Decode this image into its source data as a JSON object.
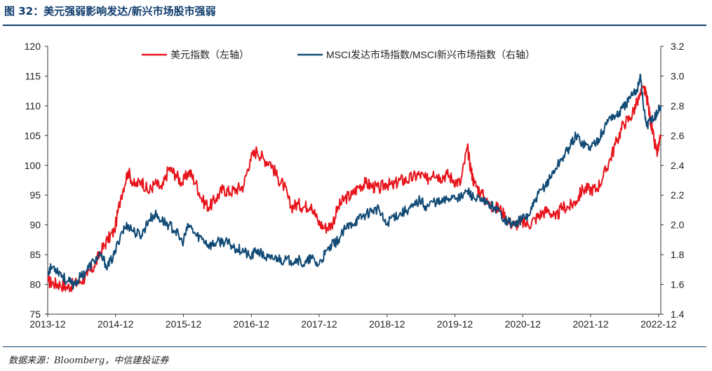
{
  "figure": {
    "title": "图 32：美元强弱影响发达/新兴市场股市强弱",
    "source": "数据来源：Bloomberg，中信建投证券"
  },
  "colors": {
    "red_series": "#e8141c",
    "blue_series": "#104a75",
    "rule": "#123e6b"
  },
  "chart_data": {
    "type": "line",
    "title": "图 32：美元强弱影响发达/新兴市场股市强弱",
    "x_tick_labels": [
      "2013-12",
      "2014-12",
      "2015-12",
      "2016-12",
      "2017-12",
      "2018-12",
      "2019-12",
      "2020-12",
      "2021-12",
      "2022-12"
    ],
    "x_range": [
      2013.917,
      2022.95
    ],
    "y_left": {
      "label": "美元指数（左轴）",
      "range": [
        75,
        120
      ],
      "ticks": [
        "75",
        "80",
        "85",
        "90",
        "95",
        "100",
        "105",
        "110",
        "115",
        "120"
      ]
    },
    "y_right": {
      "label": "MSCI发达市场指数/MSCI新兴市场指数（右轴）",
      "range": [
        1.4,
        3.2
      ],
      "ticks": [
        "1.4",
        "1.6",
        "1.8",
        "2.0",
        "2.2",
        "2.4",
        "2.6",
        "2.8",
        "3.0",
        "3.2"
      ]
    },
    "legend_position": "top-center",
    "series": [
      {
        "name": "美元指数（左轴）",
        "axis": "left",
        "color": "#e8141c",
        "x": [
          2013.92,
          2014.0,
          2014.1,
          2014.2,
          2014.3,
          2014.4,
          2014.5,
          2014.6,
          2014.7,
          2014.8,
          2014.9,
          2015.0,
          2015.1,
          2015.2,
          2015.3,
          2015.4,
          2015.5,
          2015.6,
          2015.7,
          2015.8,
          2015.9,
          2016.0,
          2016.1,
          2016.2,
          2016.3,
          2016.4,
          2016.5,
          2016.6,
          2016.7,
          2016.8,
          2016.9,
          2017.0,
          2017.1,
          2017.2,
          2017.3,
          2017.4,
          2017.5,
          2017.6,
          2017.7,
          2017.8,
          2017.9,
          2018.0,
          2018.1,
          2018.2,
          2018.3,
          2018.4,
          2018.5,
          2018.6,
          2018.7,
          2018.8,
          2018.9,
          2019.0,
          2019.1,
          2019.2,
          2019.3,
          2019.4,
          2019.5,
          2019.6,
          2019.7,
          2019.8,
          2019.9,
          2020.0,
          2020.1,
          2020.15,
          2020.2,
          2020.3,
          2020.4,
          2020.5,
          2020.6,
          2020.7,
          2020.8,
          2020.9,
          2021.0,
          2021.1,
          2021.2,
          2021.3,
          2021.4,
          2021.5,
          2021.6,
          2021.7,
          2021.8,
          2021.9,
          2022.0,
          2022.1,
          2022.2,
          2022.3,
          2022.4,
          2022.5,
          2022.6,
          2022.7,
          2022.75,
          2022.8,
          2022.85,
          2022.9,
          2022.95
        ],
        "values": [
          80.5,
          80.2,
          80.0,
          79.5,
          80.0,
          80.5,
          81.5,
          83.0,
          85.5,
          87.5,
          89.0,
          95.0,
          99.0,
          96.5,
          97.5,
          95.5,
          97.0,
          96.0,
          99.5,
          98.5,
          97.0,
          99.0,
          97.0,
          94.0,
          93.0,
          94.5,
          96.0,
          95.5,
          96.0,
          96.5,
          101.0,
          102.5,
          101.0,
          100.5,
          98.0,
          96.5,
          93.0,
          93.5,
          93.0,
          93.5,
          90.5,
          89.5,
          90.0,
          93.0,
          94.5,
          95.0,
          96.5,
          97.0,
          96.5,
          96.0,
          97.0,
          96.5,
          97.5,
          97.5,
          98.0,
          98.5,
          97.5,
          99.0,
          98.0,
          98.5,
          97.5,
          97.0,
          103.0,
          99.5,
          97.0,
          95.5,
          93.5,
          93.0,
          92.5,
          90.5,
          90.0,
          90.5,
          90.0,
          91.0,
          92.0,
          92.5,
          91.0,
          93.0,
          93.0,
          94.0,
          96.0,
          96.0,
          96.0,
          98.0,
          101.0,
          104.0,
          107.0,
          108.0,
          110.5,
          113.0,
          111.0,
          107.5,
          104.0,
          102.0,
          104.5
        ]
      },
      {
        "name": "MSCI发达市场指数/MSCI新兴市场指数（右轴）",
        "axis": "right",
        "color": "#104a75",
        "x": [
          2013.92,
          2014.0,
          2014.1,
          2014.2,
          2014.3,
          2014.4,
          2014.5,
          2014.6,
          2014.7,
          2014.8,
          2014.9,
          2015.0,
          2015.1,
          2015.2,
          2015.3,
          2015.4,
          2015.5,
          2015.6,
          2015.7,
          2015.8,
          2015.9,
          2016.0,
          2016.1,
          2016.2,
          2016.3,
          2016.4,
          2016.5,
          2016.6,
          2016.7,
          2016.8,
          2016.9,
          2017.0,
          2017.1,
          2017.2,
          2017.3,
          2017.4,
          2017.5,
          2017.6,
          2017.7,
          2017.8,
          2017.9,
          2018.0,
          2018.1,
          2018.2,
          2018.3,
          2018.4,
          2018.5,
          2018.6,
          2018.7,
          2018.8,
          2018.9,
          2019.0,
          2019.1,
          2019.2,
          2019.3,
          2019.4,
          2019.5,
          2019.6,
          2019.7,
          2019.8,
          2019.9,
          2020.0,
          2020.1,
          2020.2,
          2020.3,
          2020.4,
          2020.5,
          2020.6,
          2020.7,
          2020.8,
          2020.9,
          2021.0,
          2021.1,
          2021.2,
          2021.3,
          2021.4,
          2021.5,
          2021.6,
          2021.7,
          2021.8,
          2021.9,
          2022.0,
          2022.1,
          2022.2,
          2022.3,
          2022.4,
          2022.5,
          2022.6,
          2022.65,
          2022.7,
          2022.75,
          2022.8,
          2022.85,
          2022.9,
          2022.95
        ],
        "values": [
          1.69,
          1.72,
          1.68,
          1.62,
          1.6,
          1.65,
          1.7,
          1.76,
          1.79,
          1.72,
          1.8,
          1.95,
          2.0,
          1.95,
          1.93,
          2.03,
          2.07,
          2.03,
          2.0,
          1.96,
          1.88,
          2.0,
          1.93,
          1.91,
          1.86,
          1.88,
          1.89,
          1.87,
          1.84,
          1.83,
          1.78,
          1.83,
          1.79,
          1.77,
          1.78,
          1.76,
          1.76,
          1.77,
          1.73,
          1.78,
          1.73,
          1.8,
          1.86,
          1.9,
          1.97,
          2.01,
          2.04,
          2.07,
          2.1,
          2.1,
          2.0,
          2.06,
          2.07,
          2.1,
          2.12,
          2.17,
          2.12,
          2.16,
          2.15,
          2.17,
          2.2,
          2.18,
          2.23,
          2.18,
          2.16,
          2.14,
          2.12,
          2.07,
          2.02,
          2.0,
          2.04,
          2.06,
          2.16,
          2.24,
          2.3,
          2.38,
          2.45,
          2.52,
          2.6,
          2.55,
          2.52,
          2.56,
          2.63,
          2.73,
          2.73,
          2.79,
          2.85,
          2.91,
          3.01,
          2.77,
          2.66,
          2.72,
          2.71,
          2.76,
          2.8
        ]
      }
    ]
  }
}
